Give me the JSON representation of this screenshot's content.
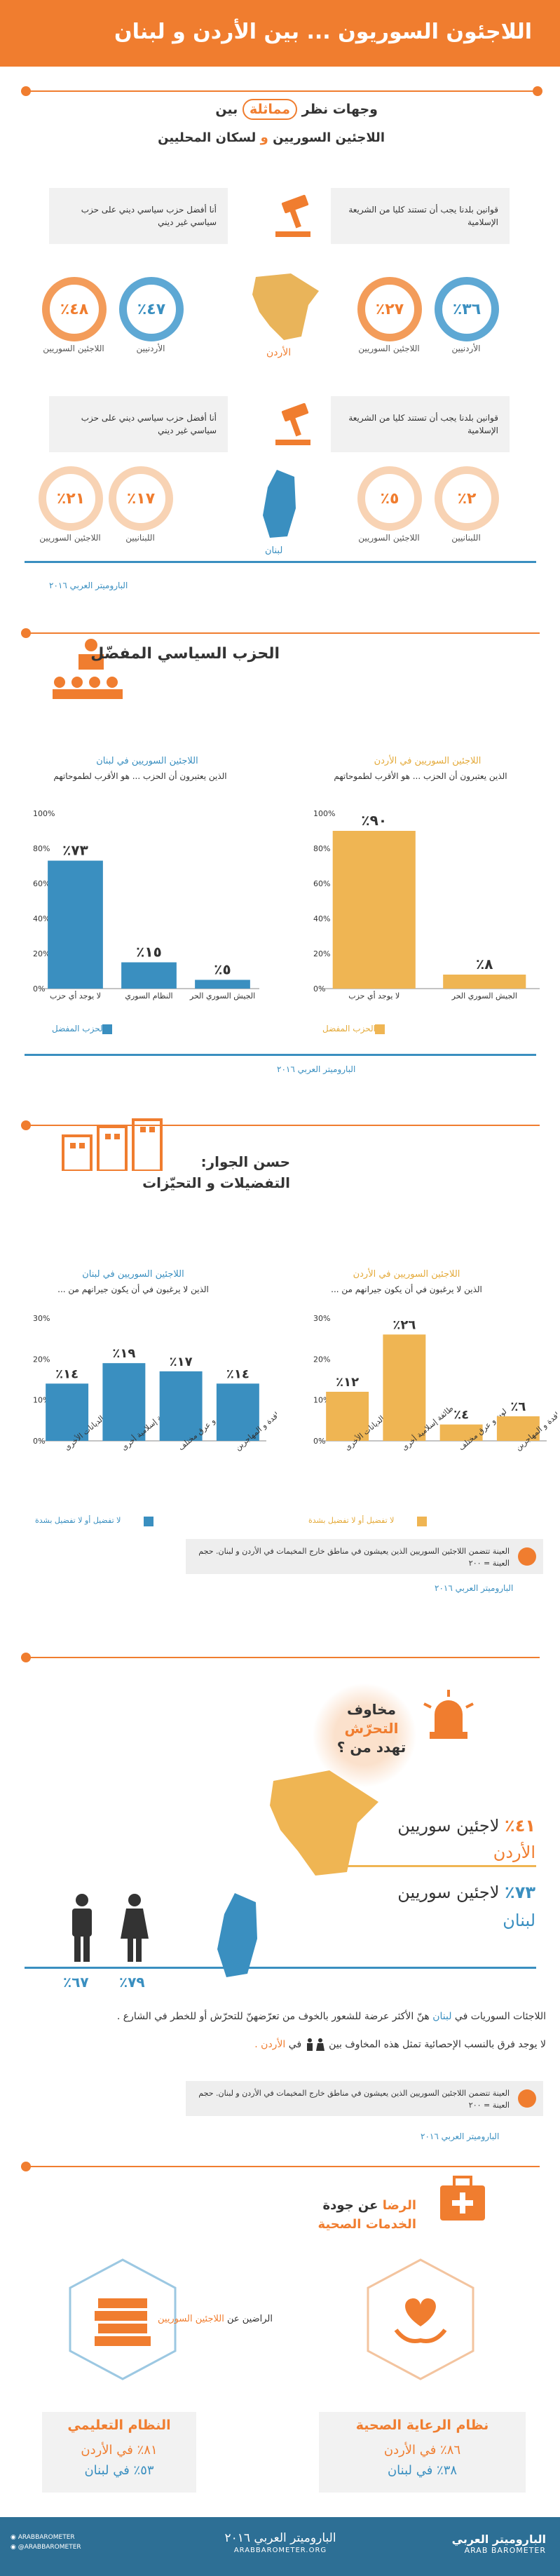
{
  "header": {
    "title": "اللاجئون السوريون ... بين الأردن و لبنان"
  },
  "section1": {
    "title_a": "وجهات نظر",
    "title_b": "مماثلة",
    "title_c": "بين",
    "subtitle_a": "اللاجئين السوريين",
    "subtitle_b": "و",
    "subtitle_c": "لسكان المحليين"
  },
  "jordan_block": {
    "q1": "قوانين بلدنا يجب أن تستند كليا من الشريعة الإسلامية",
    "q2": "أنا أفضل حزب سياسي ديني على حزب سياسي غير ديني",
    "r1": "٣٦٪",
    "r1_label": "الأردنيين",
    "r2": "٢٧٪",
    "r2_label": "اللاجئين السوريين",
    "r3": "٤٧٪",
    "r3_label": "الأردنيين",
    "r4": "٤٨٪",
    "r4_label": "اللاجئين السوريين",
    "country": "الأردن"
  },
  "lebanon_block": {
    "q1": "قوانين بلدنا يجب أن تستند كليا من الشريعة الإسلامية",
    "q2": "أنا أفضل حزب سياسي ديني على حزب سياسي غير ديني",
    "r1": "٢٪",
    "r1_label": "اللبنانيين",
    "r2": "٥٪",
    "r2_label": "اللاجئين السوريين",
    "r3": "١٧٪",
    "r3_label": "اللبنانيين",
    "r4": "٢١٪",
    "r4_label": "اللاجئين السوريين",
    "country": "لبنان"
  },
  "source1": "الباروميتر العربي ٢٠١٦",
  "section2": {
    "title": "الحزب السياسي المفضّل"
  },
  "chart_party_jordan": {
    "title": "اللاجئين السوريين في الأردن",
    "subtitle": "الذين يعتبرون أن الحزب ... هو الأقرب لطموحاتهم",
    "legend": "الحزب المفضل"
  },
  "chart_party_lebanon": {
    "title": "اللاجئين السوريين في لبنان",
    "subtitle": "الذين يعتبرون أن الحزب ... هو الأقرب لطموحاتهم",
    "legend": "الحزب المفضل"
  },
  "source2": "الباروميتر العربي ٢٠١٦",
  "section3": {
    "title_a": "حسن الجوار:",
    "title_b": "التفضيلات و التحيّزات"
  },
  "chart_neighbors_jordan": {
    "title": "اللاجئين السوريين في الأردن",
    "subtitle": "الذين لا يرغبون في أن يكون جيرانهم من ...",
    "legend": "لا تفضيل أو لا تفضيل بشدة"
  },
  "chart_neighbors_lebanon": {
    "title": "اللاجئين السوريين في لبنان",
    "subtitle": "الذين لا يرغبون في أن يكون جيرانهم من ...",
    "legend": "لا تفضيل أو لا تفضيل بشدة"
  },
  "note3": "العينة تتضمن اللاجئين السوريين الذين يعيشون في مناطق خارج المخيمات في الأردن و لبنان. حجم العينة = ٢٠٠",
  "source3": "الباروميتر العربي ٢٠١٦",
  "section4": {
    "title_a": "مخاوف",
    "title_b": "التحرّش",
    "title_c": "تهدد من ؟",
    "j_pct": "٤١٪",
    "j_text": "لاجئين سوريين",
    "j_country": "الأردن",
    "l_pct": "٧٣٪",
    "l_text": "لاجئين سوريين",
    "l_country": "لبنان",
    "female_pct": "٧٩٪",
    "male_pct": "٦٧٪",
    "text1_a": "اللاجئات السوريات في",
    "text1_b": "لبنان",
    "text1_c": "هنّ الأكثر عرضة للشعور بالخوف من تعرّضهنّ للتحرّش أو للخطر في الشارع .",
    "text2_a": "لا يوجد فرق بالنسب الإحصائية تمثل هذه المخاوف بين",
    "text2_b": "في",
    "text2_c": "الأردن .",
    "note": "العينة تتضمن اللاجئين السوريين الذين يعيشون في مناطق خارج المخيمات في الأردن و لبنان. حجم العينة = ٢٠٠",
    "source": "الباروميتر العربي ٢٠١٦"
  },
  "section5": {
    "title_a": "الرضا",
    "title_b": "عن جودة",
    "title_c": "الخدمات الصحية",
    "mid_a": "اللاجئين السوريين",
    "mid_b": "الراضين عن",
    "health_title": "نظام الرعاية الصحية",
    "health_j": "٨٦٪ في الأردن",
    "health_l": "٣٨٪ في لبنان",
    "edu_title": "النظام التعليمي",
    "edu_j": "٨١٪ في الأردن",
    "edu_l": "٥٣٪ في لبنان"
  },
  "footer": {
    "logo_ar": "الباروميتر العربي",
    "logo_en": "ARAB BAROMETER",
    "center_ar": "الباروميتر العربي ٢٠١٦",
    "center_en": "ARABBAROMETER.ORG",
    "social1": "ARABBAROMETER",
    "social2": "@ARABBAROMETER"
  },
  "chart_data": [
    {
      "type": "bar",
      "title": "اللاجئين السوريين في الأردن",
      "categories": [
        "لا يوجد أي حزب",
        "الجيش السوري الحر"
      ],
      "values": [
        90,
        8
      ],
      "value_labels": [
        "٩٠٪",
        "٨٪"
      ],
      "ylim": [
        0,
        100
      ],
      "yticks": [
        "0%",
        "20%",
        "40%",
        "60%",
        "80%",
        "100%"
      ],
      "color": "#efb553"
    },
    {
      "type": "bar",
      "title": "اللاجئين السوريين في لبنان",
      "categories": [
        "لا يوجد أي حزب",
        "النظام السوري",
        "الجيش السوري الحر"
      ],
      "values": [
        73,
        15,
        5
      ],
      "value_labels": [
        "٧٣٪",
        "١٥٪",
        "٥٪"
      ],
      "ylim": [
        0,
        100
      ],
      "yticks": [
        "0%",
        "20%",
        "40%",
        "60%",
        "80%",
        "100%"
      ],
      "color": "#3a8fc0"
    },
    {
      "type": "bar",
      "title": "اللاجئين السوريين في الأردن",
      "categories": [
        "الديانات الأخرى",
        "طائفة إسلامية أخرى",
        "لون و عرق مختلف",
        "العمالة الوافدة و المهاجرين"
      ],
      "values": [
        12,
        26,
        4,
        6
      ],
      "value_labels": [
        "١٢٪",
        "٢٦٪",
        "٤٪",
        "٦٪"
      ],
      "ylim": [
        0,
        30
      ],
      "yticks": [
        "0%",
        "10%",
        "20%",
        "30%"
      ],
      "color": "#efb553"
    },
    {
      "type": "bar",
      "title": "اللاجئين السوريين في لبنان",
      "categories": [
        "الديانات الأخرى",
        "طائفة إسلامية أخرى",
        "لون و عرق مختلف",
        "العمالة الوافدة و المهاجرين"
      ],
      "values": [
        14,
        19,
        17,
        14
      ],
      "value_labels": [
        "١٤٪",
        "١٩٪",
        "١٧٪",
        "١٤٪"
      ],
      "ylim": [
        0,
        30
      ],
      "yticks": [
        "0%",
        "10%",
        "20%",
        "30%"
      ],
      "color": "#3a8fc0"
    }
  ]
}
